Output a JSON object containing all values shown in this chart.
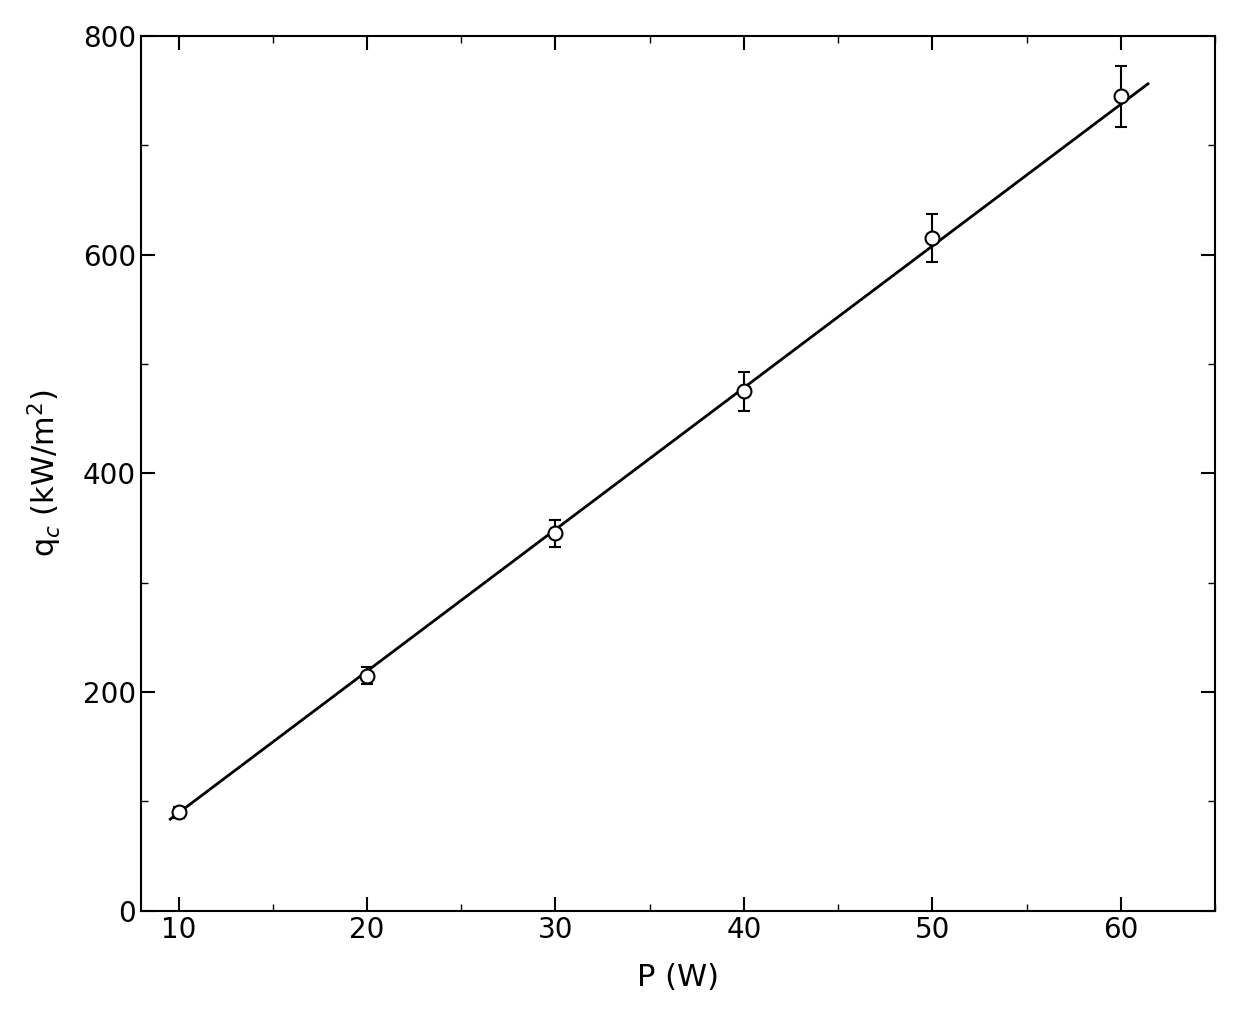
{
  "x": [
    10,
    20,
    30,
    40,
    50,
    60
  ],
  "y": [
    90,
    215,
    345,
    475,
    615,
    745
  ],
  "y_err": [
    5,
    8,
    12,
    18,
    22,
    28
  ],
  "fit_x": [
    9.5,
    61.5
  ],
  "fit_y": [
    83,
    757
  ],
  "xlabel": "P (W)",
  "xlim": [
    8,
    65
  ],
  "ylim": [
    0,
    800
  ],
  "xticks": [
    10,
    20,
    30,
    40,
    50,
    60
  ],
  "yticks": [
    0,
    200,
    400,
    600,
    800
  ],
  "marker_size": 10,
  "line_color": "#000000",
  "marker_color": "white",
  "marker_edge_color": "#000000",
  "background_color": "#ffffff",
  "xlabel_fontsize": 22,
  "ylabel_fontsize": 22,
  "tick_fontsize": 20,
  "line_width": 2.0,
  "marker_linewidth": 1.5,
  "errorbar_linewidth": 1.5,
  "errorbar_capsize": 4,
  "capthick": 1.5
}
